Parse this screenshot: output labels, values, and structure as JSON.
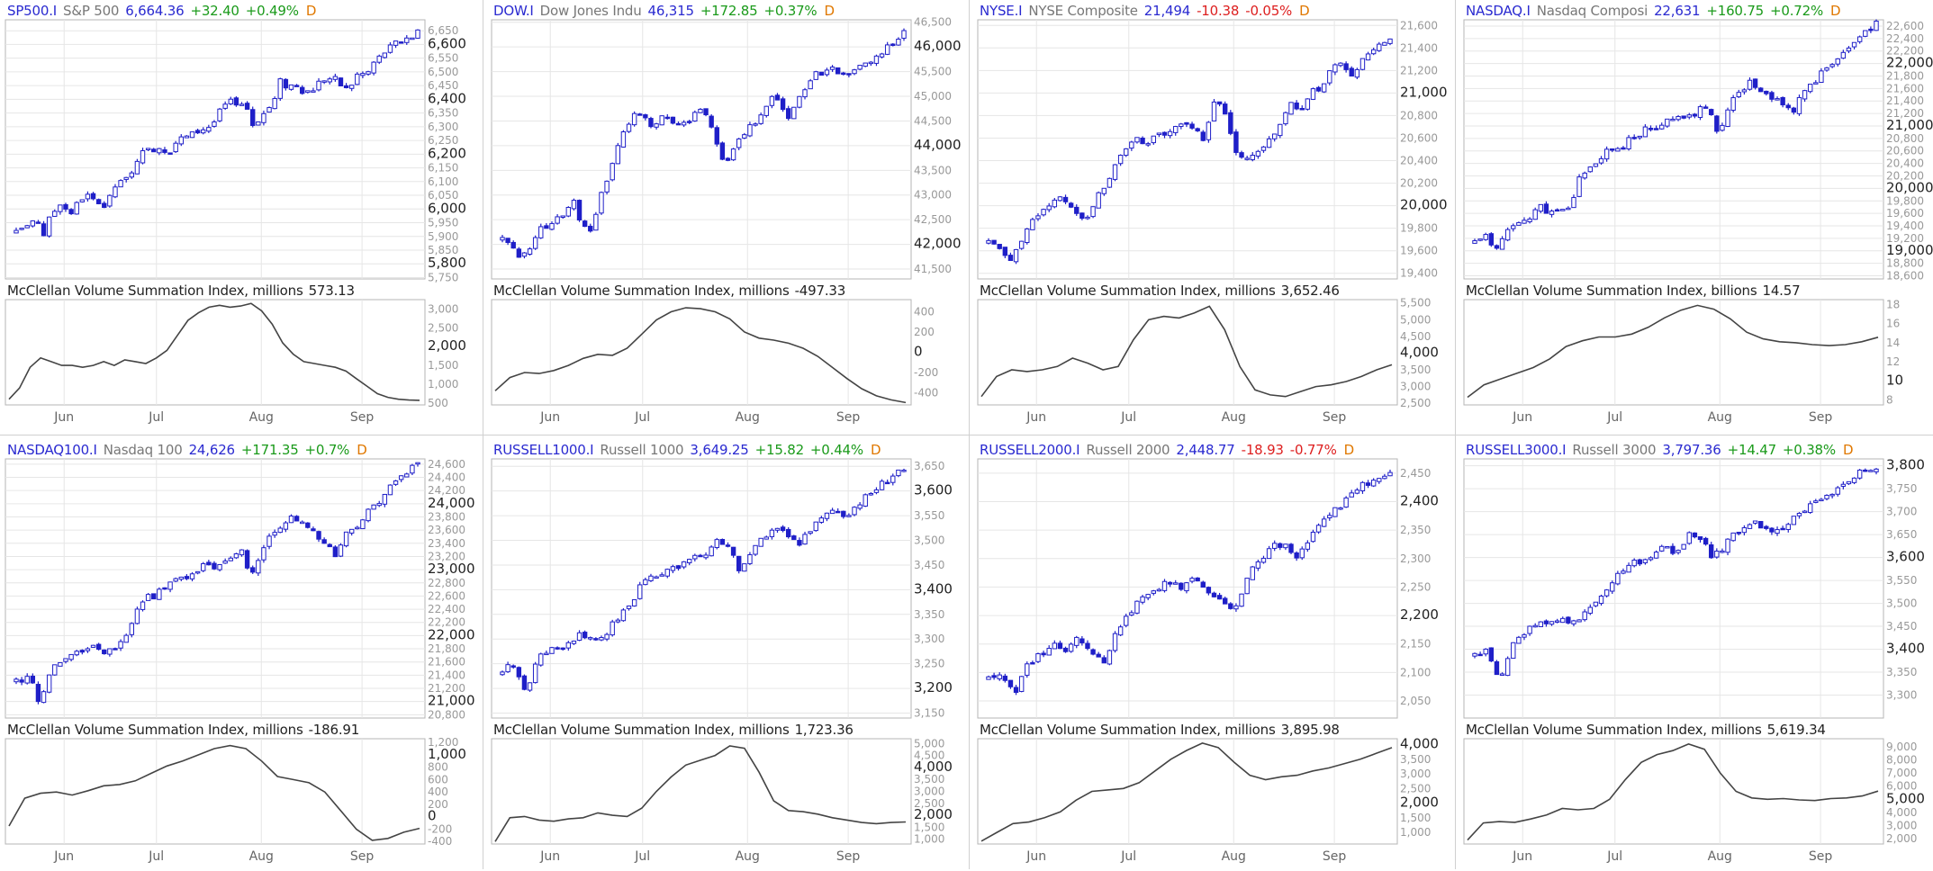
{
  "colors": {
    "candle": "#1f1fc8",
    "indicator": "#444444",
    "up": "#1a9a1a",
    "down": "#dd1f1f",
    "grid": "#e6e6e6",
    "frame": "#b5b5b5"
  },
  "panels": [
    {
      "symbol": "SP500.I",
      "name": "S&P 500",
      "price": "6,664.36",
      "change": "+32.40",
      "pct": "+0.49%",
      "freq": "D",
      "dir": "up",
      "ind_label": "McClellan Volume Summation Index, millions",
      "ind_value": "573.13"
    },
    {
      "symbol": "DOW.I",
      "name": "Dow Jones Indu",
      "price": "46,315",
      "change": "+172.85",
      "pct": "+0.37%",
      "freq": "D",
      "dir": "up",
      "ind_label": "McClellan Volume Summation Index, millions",
      "ind_value": "-497.33"
    },
    {
      "symbol": "NYSE.I",
      "name": "NYSE Composite",
      "price": "21,494",
      "change": "-10.38",
      "pct": "-0.05%",
      "freq": "D",
      "dir": "down",
      "ind_label": "McClellan Volume Summation Index, millions",
      "ind_value": "3,652.46"
    },
    {
      "symbol": "NASDAQ.I",
      "name": "Nasdaq Composi",
      "price": "22,631",
      "change": "+160.75",
      "pct": "+0.72%",
      "freq": "D",
      "dir": "up",
      "ind_label": "McClellan Volume Summation Index, billions",
      "ind_value": "14.57"
    },
    {
      "symbol": "NASDAQ100.I",
      "name": "Nasdaq 100",
      "price": "24,626",
      "change": "+171.35",
      "pct": "+0.7%",
      "freq": "D",
      "dir": "up",
      "ind_label": "McClellan Volume Summation Index, millions",
      "ind_value": "-186.91"
    },
    {
      "symbol": "RUSSELL1000.I",
      "name": "Russell 1000",
      "price": "3,649.25",
      "change": "+15.82",
      "pct": "+0.44%",
      "freq": "D",
      "dir": "up",
      "ind_label": "McClellan Volume Summation Index, millions",
      "ind_value": "1,723.36"
    },
    {
      "symbol": "RUSSELL2000.I",
      "name": "Russell 2000",
      "price": "2,448.77",
      "change": "-18.93",
      "pct": "-0.77%",
      "freq": "D",
      "dir": "down",
      "ind_label": "McClellan Volume Summation Index, millions",
      "ind_value": "3,895.98"
    },
    {
      "symbol": "RUSSELL3000.I",
      "name": "Russell 3000",
      "price": "3,797.36",
      "change": "+14.47",
      "pct": "+0.38%",
      "freq": "D",
      "dir": "up",
      "ind_label": "McClellan Volume Summation Index, millions",
      "ind_value": "5,619.34"
    }
  ],
  "chart_data": [
    {
      "type": "candlestick",
      "title": "SP500.I S&P 500",
      "months": [
        "Jun",
        "Jul",
        "Aug",
        "Sep"
      ],
      "price_ylim": [
        5745,
        6690
      ],
      "price_ticks": [
        "6,650",
        "6,600",
        "6,550",
        "6,500",
        "6,450",
        "6,400",
        "6,350",
        "6,300",
        "6,250",
        "6,200",
        "6,150",
        "6,100",
        "6,050",
        "6,000",
        "5,950",
        "5,900",
        "5,850",
        "5,800",
        "5,750"
      ],
      "price_major": [
        "6,600",
        "6,400",
        "6,200",
        "6,000",
        "5,800"
      ],
      "close_path": [
        5911,
        5934,
        5940,
        5945,
        5960,
        5895,
        5983,
        6001,
        6035,
        5985,
        5992,
        6035,
        6050,
        6045,
        6006,
        6005,
        6020,
        6080,
        6093,
        6101,
        6140,
        6161,
        6198,
        6213,
        6223,
        6226,
        6217,
        6217,
        6250,
        6260,
        6265,
        6275,
        6290,
        6296,
        6305,
        6332,
        6375,
        6382,
        6397,
        6385,
        6390,
        6305,
        6325,
        6345,
        6368,
        6395,
        6465,
        6452,
        6452,
        6458,
        6400,
        6438,
        6441,
        6468,
        6478,
        6475,
        6470,
        6440,
        6435,
        6480,
        6502,
        6481,
        6530,
        6545,
        6570,
        6584,
        6602,
        6613,
        6630,
        6620,
        6664
      ],
      "ind_ylim": [
        450,
        3250
      ],
      "ind_ticks": [
        "3,000",
        "2,500",
        "2,000",
        "1,500",
        "1,000",
        "500"
      ],
      "ind_major": [
        "2,000"
      ],
      "ind_path": [
        600,
        900,
        1450,
        1700,
        1600,
        1500,
        1500,
        1450,
        1500,
        1600,
        1500,
        1650,
        1600,
        1550,
        1700,
        1900,
        2300,
        2700,
        2900,
        3050,
        3100,
        3050,
        3080,
        3150,
        2950,
        2600,
        2100,
        1800,
        1600,
        1550,
        1500,
        1450,
        1350,
        1150,
        950,
        750,
        650,
        600,
        580,
        573
      ]
    },
    {
      "type": "candlestick",
      "title": "DOW.I Dow Jones Indu",
      "months": [
        "Jun",
        "Jul",
        "Aug",
        "Sep"
      ],
      "price_ylim": [
        41300,
        46550
      ],
      "price_ticks": [
        "46,500",
        "46,000",
        "45,500",
        "45,000",
        "44,500",
        "44,000",
        "43,500",
        "43,000",
        "42,500",
        "42,000",
        "41,500"
      ],
      "price_major": [
        "46,000",
        "44,000",
        "42,000"
      ],
      "close_path": [
        42200,
        42050,
        41700,
        41900,
        42350,
        42400,
        42450,
        42700,
        42850,
        42400,
        42200,
        43000,
        43400,
        44100,
        44400,
        44650,
        44500,
        44350,
        44600,
        44550,
        44400,
        44500,
        44700,
        44600,
        44050,
        43650,
        44000,
        44200,
        44400,
        44700,
        44950,
        44900,
        44500,
        44850,
        45200,
        45500,
        45450,
        45600,
        45400,
        45500,
        45700,
        45650,
        45850,
        46000,
        46100,
        46300
      ],
      "ind_ylim": [
        -520,
        520
      ],
      "ind_ticks": [
        "400",
        "200",
        "0",
        "-200",
        "-400"
      ],
      "ind_major": [
        "0"
      ],
      "ind_path": [
        -380,
        -250,
        -200,
        -210,
        -180,
        -130,
        -60,
        -20,
        -30,
        40,
        180,
        320,
        400,
        440,
        430,
        400,
        330,
        200,
        140,
        120,
        90,
        40,
        -40,
        -150,
        -260,
        -360,
        -430,
        -470,
        -497
      ]
    },
    {
      "type": "candlestick",
      "title": "NYSE.I NYSE Composite",
      "months": [
        "Jun",
        "Jul",
        "Aug",
        "Sep"
      ],
      "price_ylim": [
        19350,
        21650
      ],
      "price_ticks": [
        "21,600",
        "21,400",
        "21,200",
        "21,000",
        "20,800",
        "20,600",
        "20,400",
        "20,200",
        "20,000",
        "19,800",
        "19,600",
        "19,400"
      ],
      "price_major": [
        "21,000",
        "20,000"
      ],
      "close_path": [
        19700,
        19600,
        19500,
        19650,
        19800,
        19900,
        20000,
        20050,
        20050,
        19950,
        19850,
        20100,
        20200,
        20350,
        20500,
        20600,
        20550,
        20650,
        20650,
        20700,
        20750,
        20700,
        20600,
        20950,
        20900,
        20500,
        20400,
        20450,
        20500,
        20600,
        20800,
        20900,
        20850,
        21000,
        21050,
        21200,
        21250,
        21150,
        21250,
        21400,
        21450,
        21494
      ],
      "ind_ylim": [
        2450,
        5600
      ],
      "ind_ticks": [
        "5,500",
        "5,000",
        "4,500",
        "4,000",
        "3,500",
        "3,000",
        "2,500"
      ],
      "ind_major": [
        "4,000"
      ],
      "ind_path": [
        2700,
        3300,
        3500,
        3450,
        3500,
        3600,
        3850,
        3700,
        3500,
        3600,
        4400,
        5000,
        5100,
        5050,
        5200,
        5400,
        4700,
        3600,
        2900,
        2750,
        2700,
        2850,
        3000,
        3050,
        3150,
        3300,
        3500,
        3650
      ]
    },
    {
      "type": "candlestick",
      "title": "NASDAQ.I Nasdaq Composi",
      "months": [
        "Jun",
        "Jul",
        "Aug",
        "Sep"
      ],
      "price_ylim": [
        18550,
        22700
      ],
      "price_ticks": [
        "22,600",
        "22,400",
        "22,200",
        "22,000",
        "21,800",
        "21,600",
        "21,400",
        "21,200",
        "21,000",
        "20,800",
        "20,600",
        "20,400",
        "20,200",
        "20,000",
        "19,800",
        "19,600",
        "19,400",
        "19,200",
        "19,000",
        "18,800",
        "18,600"
      ],
      "price_major": [
        "22,000",
        "21,000",
        "20,000",
        "19,000"
      ],
      "close_path": [
        19150,
        19250,
        19000,
        19350,
        19400,
        19500,
        19700,
        19650,
        19600,
        19750,
        20200,
        20400,
        20500,
        20650,
        20700,
        20800,
        20950,
        20900,
        21050,
        21100,
        21150,
        21200,
        21350,
        20900,
        21300,
        21500,
        21700,
        21600,
        21500,
        21400,
        21200,
        21600,
        21700,
        21900,
        22050,
        22200,
        22350,
        22550,
        22631
      ],
      "ind_ylim": [
        7.5,
        18.5
      ],
      "ind_ticks": [
        "18",
        "16",
        "14",
        "12",
        "10",
        "8"
      ],
      "ind_major": [
        "10"
      ],
      "ind_path": [
        8.3,
        9.6,
        10.2,
        10.8,
        11.4,
        12.3,
        13.6,
        14.2,
        14.6,
        14.6,
        14.9,
        15.6,
        16.6,
        17.4,
        17.9,
        17.5,
        16.5,
        15.1,
        14.4,
        14.1,
        14.0,
        13.8,
        13.7,
        13.8,
        14.1,
        14.57
      ]
    },
    {
      "type": "candlestick",
      "title": "NASDAQ100.I Nasdaq 100",
      "months": [
        "Jun",
        "Jul",
        "Aug",
        "Sep"
      ],
      "price_ylim": [
        20750,
        24680
      ],
      "price_ticks": [
        "24,600",
        "24,400",
        "24,200",
        "24,000",
        "23,800",
        "23,600",
        "23,400",
        "23,200",
        "23,000",
        "22,800",
        "22,600",
        "22,400",
        "22,200",
        "22,000",
        "21,800",
        "21,600",
        "21,400",
        "21,200",
        "21,000",
        "20,800"
      ],
      "price_major": [
        "24,000",
        "23,000",
        "22,000",
        "21,000"
      ],
      "close_path": [
        21300,
        21400,
        21000,
        21500,
        21600,
        21700,
        21850,
        21800,
        21750,
        21950,
        22300,
        22550,
        22650,
        22800,
        22850,
        22950,
        23100,
        23050,
        23200,
        23300,
        22900,
        23350,
        23600,
        23800,
        23700,
        23600,
        23450,
        23200,
        23550,
        23700,
        23900,
        24100,
        24300,
        24450,
        24626
      ],
      "ind_ylim": [
        -440,
        1260
      ],
      "ind_ticks": [
        "1,200",
        "1,000",
        "800",
        "600",
        "400",
        "200",
        "0",
        "-200",
        "-400"
      ],
      "ind_major": [
        "1,000",
        "0"
      ],
      "ind_path": [
        -150,
        300,
        380,
        400,
        350,
        420,
        500,
        520,
        580,
        700,
        820,
        900,
        1000,
        1100,
        1150,
        1100,
        900,
        650,
        600,
        550,
        400,
        100,
        -200,
        -380,
        -350,
        -250,
        -187
      ]
    },
    {
      "type": "candlestick",
      "title": "RUSSELL1000.I Russell 1000",
      "months": [
        "Jun",
        "Jul",
        "Aug",
        "Sep"
      ],
      "price_ylim": [
        3140,
        3665
      ],
      "price_ticks": [
        "3,650",
        "3,600",
        "3,550",
        "3,500",
        "3,450",
        "3,400",
        "3,350",
        "3,300",
        "3,250",
        "3,200",
        "3,150"
      ],
      "price_major": [
        "3,600",
        "3,400",
        "3,200"
      ],
      "close_path": [
        3240,
        3250,
        3190,
        3260,
        3275,
        3285,
        3300,
        3310,
        3295,
        3320,
        3350,
        3380,
        3420,
        3430,
        3440,
        3450,
        3460,
        3470,
        3500,
        3490,
        3440,
        3480,
        3500,
        3520,
        3510,
        3490,
        3520,
        3540,
        3560,
        3550,
        3570,
        3590,
        3610,
        3630,
        3649
      ],
      "ind_ylim": [
        800,
        5200
      ],
      "ind_ticks": [
        "5,000",
        "4,500",
        "4,000",
        "3,500",
        "3,000",
        "2,500",
        "2,000",
        "1,500",
        "1,000"
      ],
      "ind_major": [
        "4,000",
        "2,000"
      ],
      "ind_path": [
        900,
        1900,
        1950,
        1800,
        1750,
        1850,
        1900,
        2100,
        2000,
        1950,
        2300,
        3000,
        3600,
        4100,
        4300,
        4500,
        4900,
        4800,
        3800,
        2600,
        2200,
        2150,
        2050,
        1900,
        1800,
        1700,
        1650,
        1700,
        1723
      ]
    },
    {
      "type": "candlestick",
      "title": "RUSSELL2000.I Russell 2000",
      "months": [
        "Jun",
        "Jul",
        "Aug",
        "Sep"
      ],
      "price_ylim": [
        2020,
        2475
      ],
      "price_ticks": [
        "2,450",
        "2,400",
        "2,350",
        "2,300",
        "2,250",
        "2,200",
        "2,150",
        "2,100",
        "2,050"
      ],
      "price_major": [
        "2,400",
        "2,200"
      ],
      "close_path": [
        2095,
        2090,
        2060,
        2110,
        2130,
        2150,
        2140,
        2160,
        2130,
        2120,
        2180,
        2210,
        2230,
        2250,
        2260,
        2245,
        2270,
        2240,
        2220,
        2210,
        2270,
        2300,
        2330,
        2320,
        2300,
        2350,
        2370,
        2390,
        2410,
        2430,
        2440,
        2449
      ],
      "ind_ylim": [
        600,
        4200
      ],
      "ind_ticks": [
        "4,000",
        "3,500",
        "3,000",
        "2,500",
        "2,000",
        "1,500",
        "1,000"
      ],
      "ind_major": [
        "4,000",
        "2,000"
      ],
      "ind_path": [
        700,
        1000,
        1300,
        1350,
        1500,
        1700,
        2100,
        2400,
        2450,
        2500,
        2700,
        3100,
        3500,
        3800,
        4050,
        3900,
        3400,
        2950,
        2800,
        2900,
        2950,
        3100,
        3200,
        3350,
        3500,
        3700,
        3896
      ],
      "ind_ylim_note": "axis"
    },
    {
      "type": "candlestick",
      "title": "RUSSELL3000.I Russell 3000",
      "months": [
        "Jun",
        "Jul",
        "Aug",
        "Sep"
      ],
      "price_ylim": [
        3250,
        3815
      ],
      "price_ticks": [
        "3,800",
        "3,750",
        "3,700",
        "3,650",
        "3,600",
        "3,550",
        "3,500",
        "3,450",
        "3,400",
        "3,350",
        "3,300"
      ],
      "price_major": [
        "3,800",
        "3,600",
        "3,400"
      ],
      "close_path": [
        3390,
        3400,
        3330,
        3420,
        3440,
        3450,
        3460,
        3470,
        3455,
        3490,
        3520,
        3550,
        3580,
        3590,
        3600,
        3620,
        3610,
        3650,
        3640,
        3600,
        3630,
        3660,
        3680,
        3670,
        3650,
        3680,
        3700,
        3720,
        3730,
        3750,
        3770,
        3790,
        3797
      ],
      "ind_ylim": [
        1600,
        9600
      ],
      "ind_ticks": [
        "9,000",
        "8,000",
        "7,000",
        "6,000",
        "5,000",
        "4,000",
        "3,000",
        "2,000"
      ],
      "ind_major": [
        "5,000"
      ],
      "ind_path": [
        1900,
        3200,
        3300,
        3250,
        3500,
        3800,
        4300,
        4200,
        4300,
        5000,
        6500,
        7800,
        8400,
        8700,
        9200,
        8800,
        7000,
        5600,
        5100,
        5000,
        5050,
        4950,
        4900,
        5050,
        5100,
        5250,
        5619
      ]
    }
  ]
}
